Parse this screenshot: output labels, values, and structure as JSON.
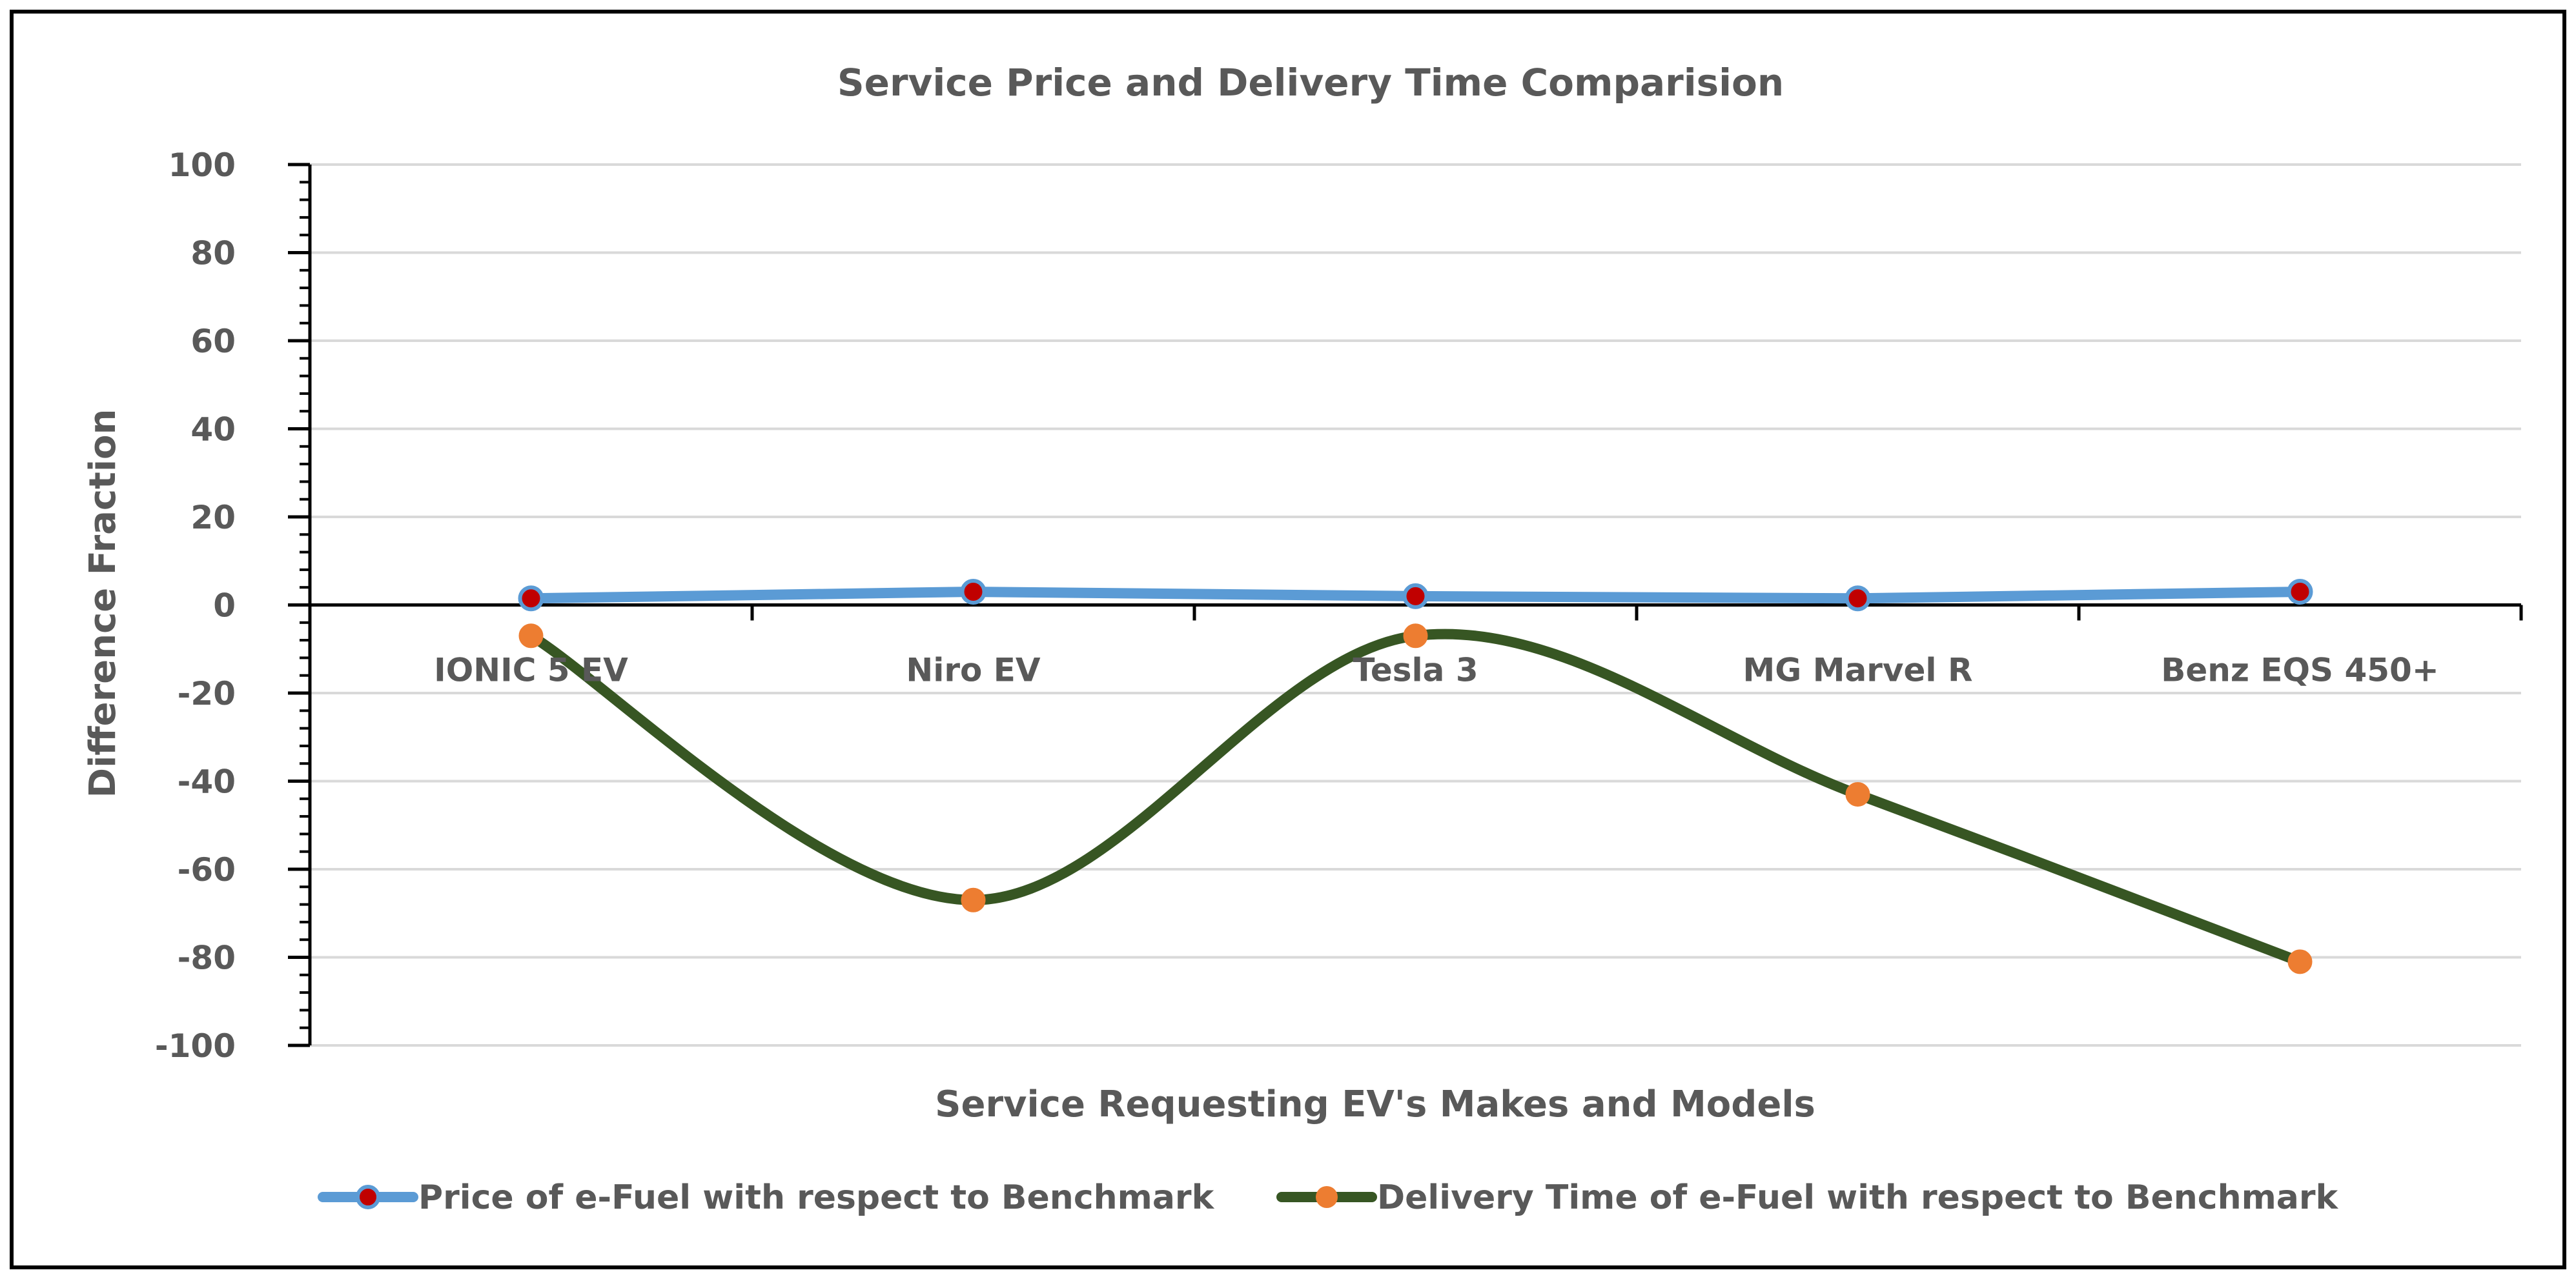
{
  "chart_data": {
    "type": "line",
    "title": "Service Price and Delivery Time Comparision",
    "xlabel": "Service Requesting EV's Makes and Models",
    "ylabel": "Difference Fraction",
    "categories": [
      "IONIC 5 EV",
      "Niro EV",
      "Tesla 3",
      "MG Marvel R",
      "Benz EQS 450+"
    ],
    "ylim": [
      -100,
      100
    ],
    "yticks": [
      100,
      80,
      60,
      40,
      20,
      0,
      -20,
      -40,
      -60,
      -80,
      -100
    ],
    "grid": true,
    "legend_position": "bottom",
    "series": [
      {
        "name": "Price of e-Fuel with respect to Benchmark",
        "values": [
          1.5,
          3,
          2,
          1.5,
          3
        ],
        "line_color": "#5B9BD5",
        "marker_color": "#C00000",
        "smooth": false
      },
      {
        "name": "Delivery Time of e-Fuel with respect to Benchmark",
        "values": [
          -7,
          -67,
          -7,
          -43,
          -81
        ],
        "line_color": "#375623",
        "marker_color": "#ED7D31",
        "smooth": true
      }
    ]
  }
}
